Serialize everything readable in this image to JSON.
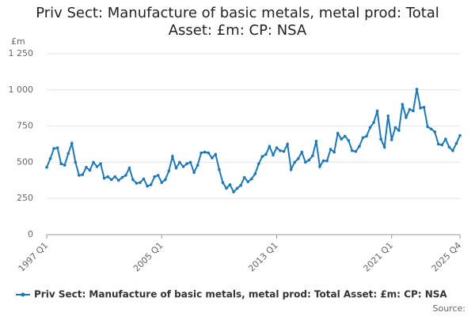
{
  "chart_data": {
    "type": "line",
    "title": "Priv Sect: Manufacture of basic metals, metal prod: Total Asset: £m: CP: NSA",
    "y_label": "£m",
    "source": "Source:",
    "categories": [
      "1997 Q1",
      null,
      null,
      null,
      null,
      null,
      null,
      null,
      null,
      null,
      null,
      null,
      null,
      null,
      null,
      null,
      null,
      null,
      null,
      null,
      null,
      null,
      null,
      null,
      null,
      null,
      null,
      null,
      null,
      null,
      null,
      null,
      "2005 Q1",
      null,
      null,
      null,
      null,
      null,
      null,
      null,
      null,
      null,
      null,
      null,
      null,
      null,
      null,
      null,
      null,
      null,
      null,
      null,
      null,
      null,
      null,
      null,
      null,
      null,
      null,
      null,
      null,
      null,
      null,
      null,
      "2013 Q1",
      null,
      null,
      null,
      null,
      null,
      null,
      null,
      null,
      null,
      null,
      null,
      null,
      null,
      null,
      null,
      null,
      null,
      null,
      null,
      null,
      null,
      null,
      null,
      null,
      null,
      null,
      null,
      null,
      null,
      null,
      null,
      "2021 Q1",
      null,
      null,
      null,
      null,
      null,
      null,
      null,
      null,
      null,
      null,
      null,
      null,
      null,
      null,
      null,
      null,
      null,
      null,
      "2025 Q4"
    ],
    "series": [
      {
        "name": "Priv Sect: Manufacture of basic metals, metal prod: Total Asset: £m: CP: NSA",
        "color": "#1f78b4",
        "values": [
          465,
          525,
          595,
          600,
          490,
          480,
          560,
          630,
          500,
          410,
          415,
          465,
          445,
          500,
          470,
          490,
          390,
          400,
          380,
          400,
          375,
          395,
          410,
          460,
          380,
          355,
          360,
          385,
          335,
          345,
          400,
          410,
          360,
          380,
          440,
          540,
          460,
          500,
          470,
          490,
          500,
          430,
          480,
          565,
          570,
          565,
          530,
          555,
          450,
          360,
          320,
          345,
          295,
          320,
          340,
          395,
          365,
          385,
          420,
          490,
          540,
          555,
          610,
          550,
          600,
          580,
          575,
          625,
          450,
          500,
          525,
          570,
          500,
          515,
          545,
          645,
          470,
          510,
          510,
          590,
          570,
          700,
          660,
          680,
          650,
          580,
          575,
          610,
          670,
          680,
          740,
          775,
          855,
          660,
          605,
          820,
          655,
          740,
          720,
          900,
          810,
          865,
          855,
          1005,
          875,
          880,
          745,
          730,
          710,
          625,
          620,
          660,
          605,
          580,
          630,
          685
        ]
      }
    ],
    "ylim": [
      0,
      1250
    ],
    "yticks": [
      0,
      250,
      500,
      750,
      {
        "value": 1000,
        "label": "1 000"
      },
      {
        "value": 1250,
        "label": "1 250"
      }
    ],
    "grid": true
  }
}
